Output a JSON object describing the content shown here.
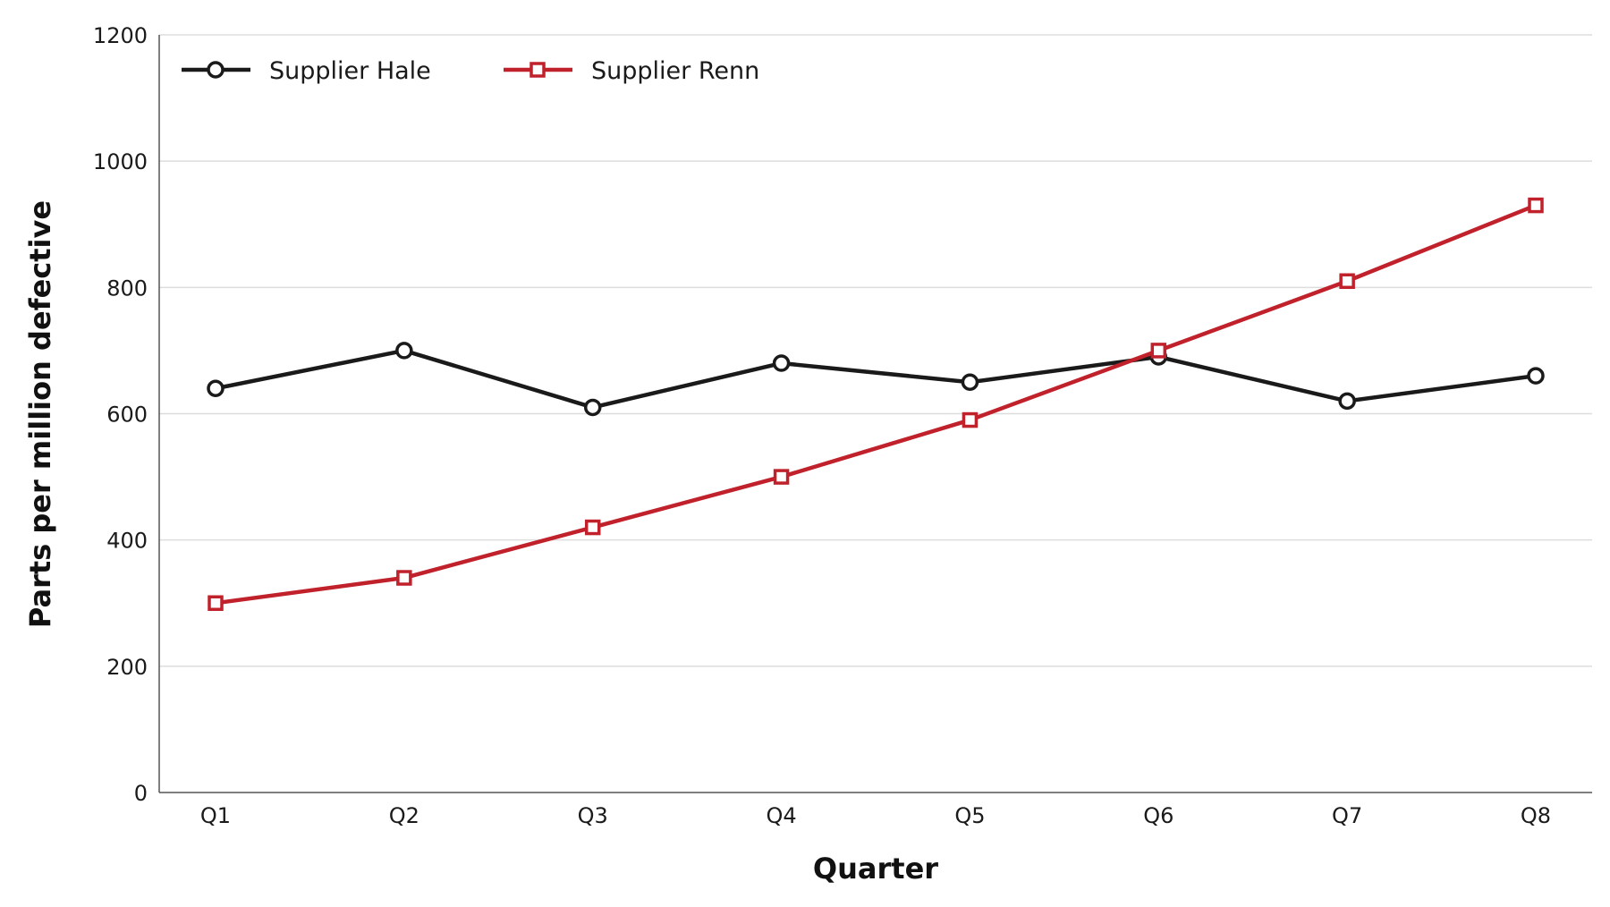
{
  "chart_data": {
    "type": "line",
    "title": "",
    "xlabel": "Quarter",
    "ylabel": "Parts per million defective",
    "categories": [
      "Q1",
      "Q2",
      "Q3",
      "Q4",
      "Q5",
      "Q6",
      "Q7",
      "Q8"
    ],
    "ylim": [
      0,
      1200
    ],
    "yticks": [
      0,
      200,
      400,
      600,
      800,
      1000,
      1200
    ],
    "grid": "horizontal",
    "legend_position": "top-left",
    "series": [
      {
        "name": "Supplier Hale",
        "marker": "circle",
        "color": "#1a1a1a",
        "values": [
          640,
          700,
          610,
          680,
          650,
          690,
          620,
          660
        ]
      },
      {
        "name": "Supplier Renn",
        "marker": "square",
        "color": "#c0212b",
        "values": [
          300,
          340,
          420,
          500,
          590,
          700,
          810,
          930
        ]
      }
    ]
  }
}
